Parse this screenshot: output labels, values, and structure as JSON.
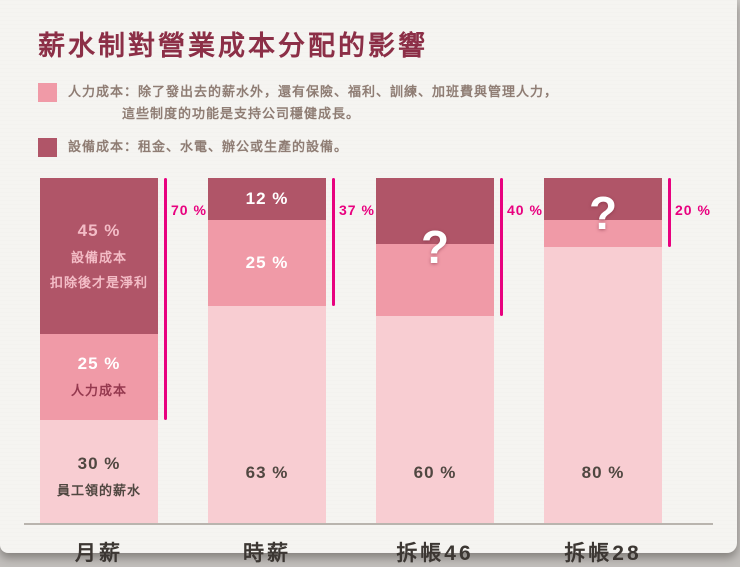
{
  "title": "薪水制對營業成本分配的影響",
  "legend": [
    {
      "name": "人力成本",
      "swatch_color": "#f09aa7",
      "line1": "人力成本：除了發出去的薪水外，還有保險、福利、訓練、加班費與管理人力，",
      "line2": "這些制度的功能是支持公司穩健成長。"
    },
    {
      "name": "設備成本",
      "swatch_color": "#b05568",
      "line1": "設備成本：租金、水電、辦公或生產的設備。"
    }
  ],
  "colors": {
    "salary": "#f8cdd2",
    "labor": "#f09aa7",
    "equipment": "#b05568",
    "bracket": "#e8017f",
    "title": "#8c2f47",
    "background": "#f5f4f1"
  },
  "chart_data": {
    "type": "bar",
    "stacked": true,
    "title": "薪水制對營業成本分配的影響",
    "categories": [
      "月薪",
      "時薪",
      "拆帳46",
      "拆帳28"
    ],
    "series": [
      {
        "name": "員工領的薪水",
        "values": [
          30,
          63,
          60,
          80
        ]
      },
      {
        "name": "人力成本",
        "values": [
          25,
          25,
          null,
          null
        ]
      },
      {
        "name": "設備成本",
        "values": [
          45,
          12,
          null,
          null
        ]
      }
    ],
    "bracket_labels": [
      "70 %",
      "37 %",
      "40 %",
      "20 %"
    ],
    "unknown_marker": "?",
    "annotations": [
      "設備成本",
      "扣除後才是淨利",
      "人力成本",
      "員工領的薪水"
    ],
    "ylim": [
      0,
      100
    ],
    "grid": false,
    "legend_position": "top-left"
  },
  "bars": [
    {
      "category": "月薪",
      "bracket": {
        "label": "70 %",
        "span": 70
      },
      "question": null,
      "segments": [
        {
          "role": "equipment",
          "pct": 45,
          "value": "45 %",
          "subs": [
            "設備成本",
            "扣除後才是淨利"
          ],
          "value_color": "#f3bcc6",
          "sub_color": "#f3bcc6",
          "align": "center"
        },
        {
          "role": "labor",
          "pct": 25,
          "value": "25 %",
          "subs": [
            "人力成本"
          ],
          "value_color": "#ffffff",
          "sub_color": "#95394f",
          "align": "center"
        },
        {
          "role": "salary",
          "pct": 30,
          "value": "30 %",
          "subs": [
            "員工領的薪水"
          ],
          "value_color": "#504741",
          "sub_color": "#504741",
          "align": "end"
        }
      ]
    },
    {
      "category": "時薪",
      "bracket": {
        "label": "37 %",
        "span": 37
      },
      "question": null,
      "segments": [
        {
          "role": "equipment",
          "pct": 12,
          "value": "12 %",
          "subs": [],
          "value_color": "#ffffff",
          "align": "center"
        },
        {
          "role": "labor",
          "pct": 25,
          "value": "25 %",
          "subs": [],
          "value_color": "#ffffff",
          "align": "center"
        },
        {
          "role": "salary",
          "pct": 63,
          "value": "63 %",
          "subs": [],
          "value_color": "#504741",
          "align": "end"
        }
      ]
    },
    {
      "category": "拆帳46",
      "bracket": {
        "label": "40 %",
        "span": 40
      },
      "question": {
        "label": "?",
        "span": 40
      },
      "segments": [
        {
          "role": "equipment",
          "pct": 19,
          "value": "",
          "subs": [],
          "align": "center"
        },
        {
          "role": "labor",
          "pct": 21,
          "value": "",
          "subs": [],
          "align": "center"
        },
        {
          "role": "salary",
          "pct": 60,
          "value": "60 %",
          "subs": [],
          "value_color": "#504741",
          "align": "end"
        }
      ]
    },
    {
      "category": "拆帳28",
      "bracket": {
        "label": "20 %",
        "span": 20
      },
      "question": {
        "label": "?",
        "span": 20
      },
      "segments": [
        {
          "role": "equipment",
          "pct": 12,
          "value": "",
          "subs": [],
          "align": "center"
        },
        {
          "role": "labor",
          "pct": 8,
          "value": "",
          "subs": [],
          "align": "center"
        },
        {
          "role": "salary",
          "pct": 80,
          "value": "80 %",
          "subs": [],
          "value_color": "#504741",
          "align": "end"
        }
      ]
    }
  ]
}
